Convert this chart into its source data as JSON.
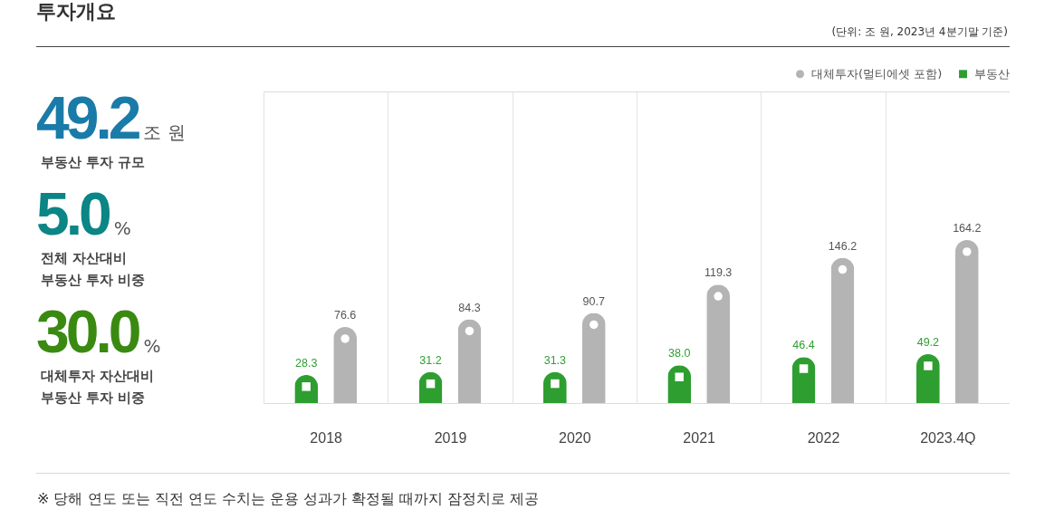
{
  "chart_data": [
    {
      "type": "other",
      "title": "투자개요",
      "annotations": [
        "49.2",
        "조 원",
        "부동산 투자 규모",
        "5.0",
        "%",
        "전체 자산대비 부동산 투자 비중",
        "30.0",
        "%",
        "대체투자 자산대비 부동산 투자 비중"
      ],
      "colors": [
        "#1a7ba9",
        "#0b8585",
        "#3a8a12"
      ]
    },
    {
      "type": "bar",
      "subtitle": "(단위: 조 원, 2023년 4분기말 기준)",
      "categories": [
        "2018",
        "2019",
        "2020",
        "2021",
        "2022",
        "2023.4Q"
      ],
      "series": [
        {
          "name": "부동산",
          "color": "#2e9e31",
          "marker": "square",
          "values": [
            28.3,
            31.2,
            31.3,
            38.0,
            46.4,
            49.2
          ],
          "value_labels": [
            "28.3",
            "31.2",
            "31.3",
            "38.0",
            "46.4",
            "49.2"
          ]
        },
        {
          "name": "대체투자(멀티에셋 포함)",
          "color": "#b4b4b4",
          "marker": "circle",
          "values": [
            76.6,
            84.3,
            90.7,
            119.3,
            146.2,
            164.2
          ],
          "value_labels": [
            "76.6",
            "84.3",
            "90.7",
            "119.3",
            "146.2",
            "164.2"
          ]
        }
      ],
      "grid": "x",
      "legend": "top right",
      "tick_labels": "x",
      "annotations": [
        "※ 당해 연도 또는 직전 연도 수치는 운용 성과가 확정될 때까지 잠정치로 제공"
      ]
    }
  ]
}
